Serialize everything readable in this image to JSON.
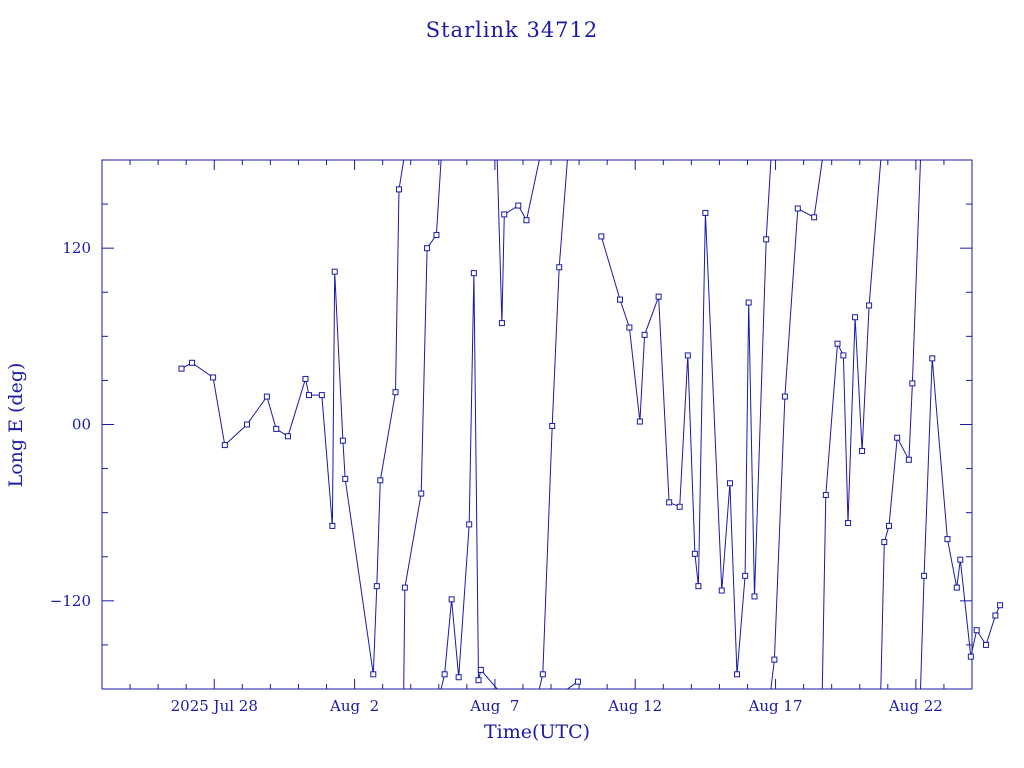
{
  "chart_data": {
    "type": "line",
    "title": "Starlink 34712",
    "xlabel": "Time(UTC)",
    "ylabel": "Long E (deg)",
    "color": "#1a1aa6",
    "marker": "square",
    "xlim": [
      "2025-07-24",
      "2025-08-24"
    ],
    "ylim": [
      -180,
      180
    ],
    "x_tick_labels": [
      {
        "date": "2025-07-28",
        "label": "2025 Jul 28"
      },
      {
        "date": "2025-08-02",
        "label": "Aug  2"
      },
      {
        "date": "2025-08-07",
        "label": "Aug  7"
      },
      {
        "date": "2025-08-12",
        "label": "Aug 12"
      },
      {
        "date": "2025-08-17",
        "label": "Aug 17"
      },
      {
        "date": "2025-08-22",
        "label": "Aug 22"
      }
    ],
    "y_tick_labels": [
      {
        "value": 120,
        "label": "120"
      },
      {
        "value": 0,
        "label": "00"
      },
      {
        "value": -120,
        "label": "−120"
      }
    ],
    "points": [
      [
        "2025-07-26T20:00",
        38
      ],
      [
        "2025-07-27T05:00",
        42
      ],
      [
        "2025-07-27T23:00",
        32
      ],
      [
        "2025-07-28T09:00",
        -14
      ],
      [
        "2025-07-29T04:00",
        0
      ],
      [
        "2025-07-29T21:00",
        19
      ],
      [
        "2025-07-30T05:00",
        -3
      ],
      [
        "2025-07-30T15:00",
        -8
      ],
      [
        "2025-07-31T06:00",
        31
      ],
      [
        "2025-07-31T09:00",
        20
      ],
      [
        "2025-07-31T20:00",
        20
      ],
      [
        "2025-08-01T05:00",
        -69
      ],
      [
        "2025-08-01T07:00",
        104
      ],
      [
        "2025-08-01T14:00",
        -11
      ],
      [
        "2025-08-01T16:00",
        -37
      ],
      [
        "2025-08-02T16:00",
        -170
      ],
      [
        "2025-08-02T19:00",
        -110
      ],
      [
        "2025-08-02T22:00",
        -38
      ],
      [
        "2025-08-03T11:00",
        22
      ],
      [
        "2025-08-03T14:00",
        160
      ],
      [
        "2025-08-03T18:00",
        180
      ],
      [
        "2025-08-03T18:00",
        -180
      ],
      [
        "2025-08-03T19:00",
        -111
      ],
      [
        "2025-08-04T09:00",
        -47
      ],
      [
        "2025-08-04T14:00",
        120
      ],
      [
        "2025-08-04T22:00",
        129
      ],
      [
        "2025-08-05T02:00",
        180
      ],
      [
        "2025-08-05T02:00",
        -180
      ],
      [
        "2025-08-05T05:00",
        -170
      ],
      [
        "2025-08-05T11:00",
        -119
      ],
      [
        "2025-08-05T17:00",
        -172
      ],
      [
        "2025-08-06T02:00",
        -68
      ],
      [
        "2025-08-06T06:00",
        103
      ],
      [
        "2025-08-06T10:00",
        -174
      ],
      [
        "2025-08-06T12:00",
        -167
      ],
      [
        "2025-08-07T02:00",
        -180
      ],
      [
        "2025-08-07T02:00",
        180
      ],
      [
        "2025-08-07T06:00",
        69
      ],
      [
        "2025-08-07T08:00",
        143
      ],
      [
        "2025-08-07T20:00",
        149
      ],
      [
        "2025-08-08T03:00",
        139
      ],
      [
        "2025-08-08T14:00",
        180
      ],
      [
        "2025-08-08T14:00",
        -180
      ],
      [
        "2025-08-08T17:00",
        -170
      ],
      [
        "2025-08-09T01:00",
        -1
      ],
      [
        "2025-08-09T07:00",
        107
      ],
      [
        "2025-08-09T14:00",
        180
      ],
      [
        "2025-08-09T14:00",
        -180
      ],
      [
        "2025-08-09T23:00",
        -175
      ],
      [
        "2025-08-10T19:00",
        128
      ],
      [
        "2025-08-11T11:00",
        85
      ],
      [
        "2025-08-11T19:00",
        66
      ],
      [
        "2025-08-12T04:00",
        2
      ],
      [
        "2025-08-12T08:00",
        61
      ],
      [
        "2025-08-12T20:00",
        87
      ],
      [
        "2025-08-13T05:00",
        -53
      ],
      [
        "2025-08-13T14:00",
        -56
      ],
      [
        "2025-08-13T21:00",
        47
      ],
      [
        "2025-08-14T03:00",
        -88
      ],
      [
        "2025-08-14T06:00",
        -110
      ],
      [
        "2025-08-14T12:00",
        144
      ],
      [
        "2025-08-15T02:00",
        -113
      ],
      [
        "2025-08-15T09:00",
        -40
      ],
      [
        "2025-08-15T15:00",
        -170
      ],
      [
        "2025-08-15T22:00",
        -103
      ],
      [
        "2025-08-16T01:00",
        83
      ],
      [
        "2025-08-16T06:00",
        -117
      ],
      [
        "2025-08-16T16:00",
        126
      ],
      [
        "2025-08-16T20:00",
        180
      ],
      [
        "2025-08-16T20:00",
        -180
      ],
      [
        "2025-08-16T23:00",
        -160
      ],
      [
        "2025-08-17T08:00",
        19
      ],
      [
        "2025-08-17T19:00",
        147
      ],
      [
        "2025-08-18T09:00",
        141
      ],
      [
        "2025-08-18T16:00",
        180
      ],
      [
        "2025-08-18T16:00",
        -180
      ],
      [
        "2025-08-18T19:00",
        -48
      ],
      [
        "2025-08-19T05:00",
        55
      ],
      [
        "2025-08-19T10:00",
        47
      ],
      [
        "2025-08-19T14:00",
        -67
      ],
      [
        "2025-08-19T20:00",
        73
      ],
      [
        "2025-08-20T02:00",
        -18
      ],
      [
        "2025-08-20T08:00",
        81
      ],
      [
        "2025-08-20T18:00",
        180
      ],
      [
        "2025-08-20T18:00",
        -180
      ],
      [
        "2025-08-20T21:00",
        -80
      ],
      [
        "2025-08-21T01:00",
        -69
      ],
      [
        "2025-08-21T08:00",
        -9
      ],
      [
        "2025-08-21T18:00",
        -24
      ],
      [
        "2025-08-21T21:00",
        28
      ],
      [
        "2025-08-22T04:00",
        180
      ],
      [
        "2025-08-22T04:00",
        -180
      ],
      [
        "2025-08-22T07:00",
        -103
      ],
      [
        "2025-08-22T14:00",
        45
      ],
      [
        "2025-08-23T03:00",
        -78
      ],
      [
        "2025-08-23T11:00",
        -111
      ],
      [
        "2025-08-23T14:00",
        -92
      ],
      [
        "2025-08-23T23:00",
        -158
      ],
      [
        "2025-08-24T04:00",
        -140
      ],
      [
        "2025-08-24T12:00",
        -150
      ],
      [
        "2025-08-24T20:00",
        -130
      ],
      [
        "2025-08-25T00:00",
        -123
      ]
    ]
  }
}
